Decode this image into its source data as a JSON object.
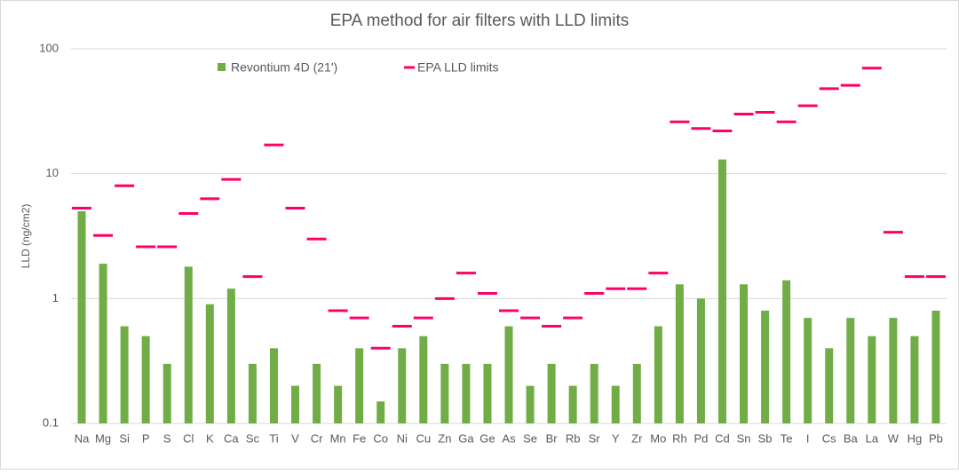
{
  "chart_data": {
    "type": "bar",
    "title": "EPA method for air filters with LLD limits",
    "y_label": "LLD (ng/cm2)",
    "log_scale": true,
    "grid": true,
    "categories": [
      "Na",
      "Mg",
      "Si",
      "P",
      "S",
      "Cl",
      "K",
      "Ca",
      "Sc",
      "Ti",
      "V",
      "Cr",
      "Mn",
      "Fe",
      "Co",
      "Ni",
      "Cu",
      "Zn",
      "Ga",
      "Ge",
      "As",
      "Se",
      "Br",
      "Rb",
      "Sr",
      "Y",
      "Zr",
      "Mo",
      "Rh",
      "Pd",
      "Cd",
      "Sn",
      "Sb",
      "Te",
      "I",
      "Cs",
      "Ba",
      "La",
      "W",
      "Hg",
      "Pb"
    ],
    "series": [
      {
        "name": "Revontium 4D (21')",
        "type": "bar",
        "color": "#70ad47",
        "values": [
          5.0,
          1.9,
          0.6,
          0.5,
          0.3,
          1.8,
          0.9,
          1.2,
          0.3,
          0.4,
          0.2,
          0.3,
          0.2,
          0.4,
          0.15,
          0.4,
          0.5,
          0.3,
          0.3,
          0.3,
          0.6,
          0.2,
          0.3,
          0.2,
          0.3,
          0.2,
          0.3,
          0.6,
          1.3,
          1.0,
          13,
          1.3,
          0.8,
          1.4,
          0.7,
          0.4,
          0.7,
          0.5,
          0.7,
          0.5,
          0.8
        ]
      },
      {
        "name": "EPA LLD limits",
        "type": "marker",
        "color": "#ff0066",
        "values": [
          5.3,
          3.2,
          8.0,
          2.6,
          2.6,
          4.8,
          6.3,
          9.0,
          1.5,
          17,
          5.3,
          3.0,
          0.8,
          0.7,
          0.4,
          0.6,
          0.7,
          1.0,
          1.6,
          1.1,
          0.8,
          0.7,
          0.6,
          0.7,
          1.1,
          1.2,
          1.2,
          1.6,
          26,
          23,
          22,
          30,
          31,
          26,
          35,
          48,
          51,
          70,
          3.4,
          1.5,
          1.5
        ]
      }
    ],
    "ylim": [
      0.1,
      100
    ],
    "yticks": [
      0.1,
      1,
      10,
      100
    ]
  }
}
